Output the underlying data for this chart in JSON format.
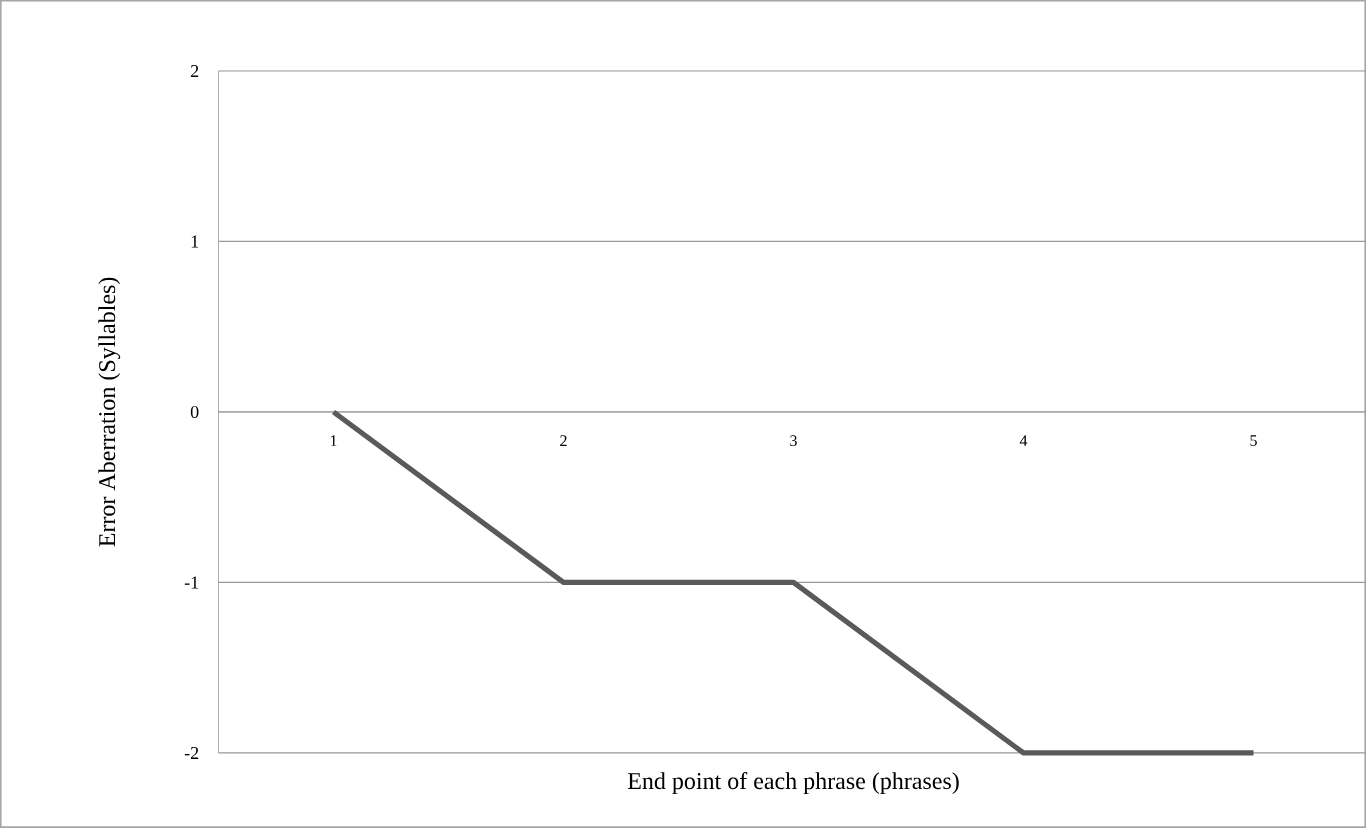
{
  "chart_data": {
    "type": "line",
    "xlabel": "End point of each phrase (phrases)",
    "ylabel": "Error Aberration (Syllables)",
    "categories": [
      "1",
      "2",
      "3",
      "4",
      "5"
    ],
    "series": [
      {
        "color": "#5a5a5a",
        "values": [
          0,
          -1,
          -1,
          -2,
          -2
        ]
      }
    ],
    "ylim": [
      -2,
      2
    ],
    "yticks": [
      -2,
      -1,
      0,
      1,
      2
    ],
    "grid": "y",
    "marker": "none",
    "line_style": "solid"
  }
}
